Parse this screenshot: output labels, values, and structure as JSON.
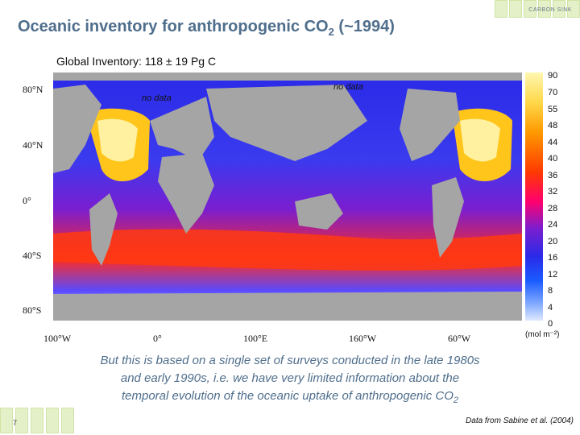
{
  "header": {
    "section_label": "CARBON SINK"
  },
  "title": {
    "text": "Oceanic inventory for anthropogenic CO",
    "sub": "2",
    "tail": " (~1994)"
  },
  "map": {
    "subtitle": "Global Inventory: 118 ± 19 Pg C",
    "annotations": [
      "no data",
      "no data"
    ],
    "lat_labels": [
      "80°N",
      "40°N",
      "0°",
      "40°S",
      "80°S"
    ],
    "lon_labels": [
      "100°W",
      "0°",
      "100°E",
      "160°W",
      "60°W"
    ],
    "colorbar_ticks": [
      "90",
      "70",
      "55",
      "48",
      "44",
      "40",
      "36",
      "32",
      "28",
      "24",
      "20",
      "16",
      "12",
      "8",
      "4",
      "0"
    ],
    "colorbar_unit": "(mol m⁻²)"
  },
  "caption": {
    "line1": "But this is based on a single set of surveys conducted in the late 1980s",
    "line2": "and early 1990s, i.e. we have very limited information about the",
    "line3": "temporal evolution of the oceanic uptake of anthropogenic CO",
    "sub": "2"
  },
  "footer": {
    "credit": "Data from Sabine et al. (2004)",
    "page_number": "7"
  }
}
